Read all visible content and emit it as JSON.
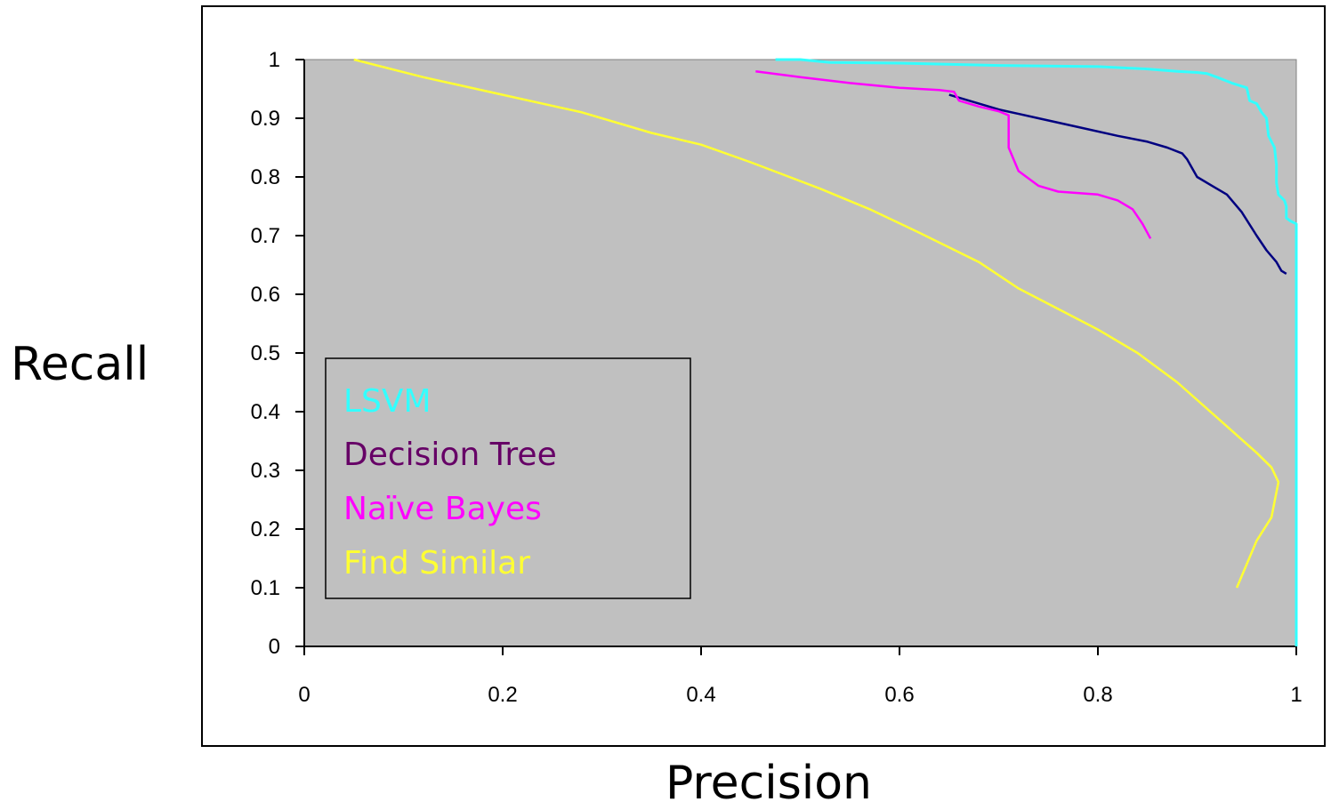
{
  "chart_data": {
    "type": "line",
    "title": "",
    "xlabel": "Precision",
    "ylabel": "Recall",
    "xlim": [
      0,
      1
    ],
    "ylim": [
      0,
      1
    ],
    "x_ticks": [
      "0",
      "0.2",
      "0.4",
      "0.6",
      "0.8",
      "1"
    ],
    "y_ticks": [
      "0",
      "0.1",
      "0.2",
      "0.3",
      "0.4",
      "0.5",
      "0.6",
      "0.7",
      "0.8",
      "0.9",
      "1"
    ],
    "grid": false,
    "plot_background": "#c0c0c0",
    "legend": {
      "placement": "lower-left",
      "entries": [
        "LSVM",
        "Decision Tree",
        "Naïve Bayes",
        "Find Similar"
      ]
    },
    "series": [
      {
        "name": "LSVM",
        "color": "#33ffff",
        "points": [
          [
            0.475,
            1.0
          ],
          [
            0.5,
            1.0
          ],
          [
            0.53,
            0.995
          ],
          [
            0.6,
            0.994
          ],
          [
            0.7,
            0.99
          ],
          [
            0.8,
            0.988
          ],
          [
            0.85,
            0.984
          ],
          [
            0.88,
            0.98
          ],
          [
            0.9,
            0.978
          ],
          [
            0.91,
            0.976
          ],
          [
            0.92,
            0.97
          ],
          [
            0.935,
            0.96
          ],
          [
            0.95,
            0.952
          ],
          [
            0.953,
            0.93
          ],
          [
            0.96,
            0.925
          ],
          [
            0.965,
            0.91
          ],
          [
            0.97,
            0.9
          ],
          [
            0.972,
            0.87
          ],
          [
            0.978,
            0.85
          ],
          [
            0.98,
            0.82
          ],
          [
            0.98,
            0.79
          ],
          [
            0.982,
            0.77
          ],
          [
            0.988,
            0.76
          ],
          [
            0.99,
            0.75
          ],
          [
            0.99,
            0.73
          ],
          [
            0.994,
            0.725
          ],
          [
            1.0,
            0.72
          ],
          [
            1.0,
            0.0
          ]
        ]
      },
      {
        "name": "Decision Tree",
        "color": "#000080",
        "points": [
          [
            0.65,
            0.94
          ],
          [
            0.67,
            0.93
          ],
          [
            0.7,
            0.915
          ],
          [
            0.74,
            0.9
          ],
          [
            0.78,
            0.885
          ],
          [
            0.82,
            0.87
          ],
          [
            0.85,
            0.86
          ],
          [
            0.87,
            0.85
          ],
          [
            0.885,
            0.84
          ],
          [
            0.89,
            0.83
          ],
          [
            0.9,
            0.8
          ],
          [
            0.915,
            0.785
          ],
          [
            0.93,
            0.77
          ],
          [
            0.945,
            0.74
          ],
          [
            0.96,
            0.7
          ],
          [
            0.97,
            0.675
          ],
          [
            0.98,
            0.655
          ],
          [
            0.985,
            0.64
          ],
          [
            0.99,
            0.635
          ]
        ]
      },
      {
        "name": "Naïve Bayes",
        "color": "#ff00ff",
        "points": [
          [
            0.455,
            0.98
          ],
          [
            0.5,
            0.97
          ],
          [
            0.55,
            0.96
          ],
          [
            0.6,
            0.952
          ],
          [
            0.62,
            0.95
          ],
          [
            0.64,
            0.948
          ],
          [
            0.655,
            0.945
          ],
          [
            0.66,
            0.93
          ],
          [
            0.68,
            0.92
          ],
          [
            0.7,
            0.912
          ],
          [
            0.71,
            0.905
          ],
          [
            0.71,
            0.85
          ],
          [
            0.72,
            0.81
          ],
          [
            0.74,
            0.785
          ],
          [
            0.76,
            0.775
          ],
          [
            0.8,
            0.77
          ],
          [
            0.82,
            0.76
          ],
          [
            0.835,
            0.745
          ],
          [
            0.845,
            0.72
          ],
          [
            0.853,
            0.695
          ]
        ]
      },
      {
        "name": "Find Similar",
        "color": "#ffff33",
        "points": [
          [
            0.05,
            1.0
          ],
          [
            0.12,
            0.97
          ],
          [
            0.2,
            0.94
          ],
          [
            0.28,
            0.91
          ],
          [
            0.35,
            0.875
          ],
          [
            0.4,
            0.855
          ],
          [
            0.45,
            0.825
          ],
          [
            0.52,
            0.78
          ],
          [
            0.57,
            0.745
          ],
          [
            0.62,
            0.705
          ],
          [
            0.68,
            0.655
          ],
          [
            0.72,
            0.61
          ],
          [
            0.76,
            0.575
          ],
          [
            0.8,
            0.54
          ],
          [
            0.84,
            0.5
          ],
          [
            0.88,
            0.45
          ],
          [
            0.92,
            0.39
          ],
          [
            0.96,
            0.33
          ],
          [
            0.975,
            0.305
          ],
          [
            0.982,
            0.28
          ],
          [
            0.975,
            0.22
          ],
          [
            0.96,
            0.18
          ],
          [
            0.94,
            0.1
          ]
        ]
      }
    ]
  }
}
